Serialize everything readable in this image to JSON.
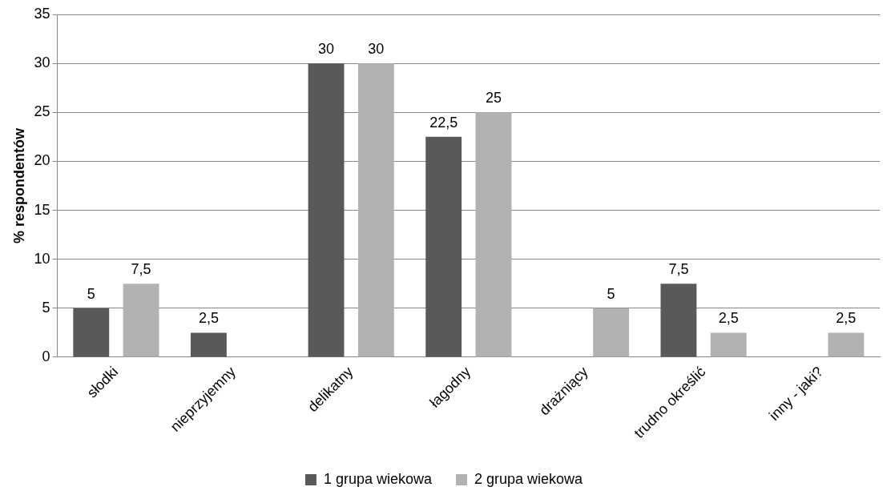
{
  "chart_data": {
    "type": "bar",
    "ylabel": "% respondentów",
    "categories": [
      "słodki",
      "nieprzyjemny",
      "delikatny",
      "łagodny",
      "drażniący",
      "trudno określić",
      "inny - jaki?"
    ],
    "series": [
      {
        "name": "1 grupa wiekowa",
        "color": "#595959",
        "values": [
          5,
          2.5,
          30,
          22.5,
          null,
          7.5,
          null
        ],
        "value_labels": [
          "5",
          "2,5",
          "30",
          "22,5",
          null,
          "7,5",
          null
        ]
      },
      {
        "name": "2 grupa wiekowa",
        "color": "#b2b2b2",
        "values": [
          7.5,
          null,
          30,
          25,
          5,
          2.5,
          2.5
        ],
        "value_labels": [
          "7,5",
          null,
          "30",
          "25",
          "5",
          "2,5",
          "2,5"
        ]
      }
    ],
    "ylim": [
      0,
      35
    ],
    "yticks": [
      0,
      5,
      10,
      15,
      20,
      25,
      30,
      35
    ],
    "grid": "y",
    "legend": "bottom"
  }
}
